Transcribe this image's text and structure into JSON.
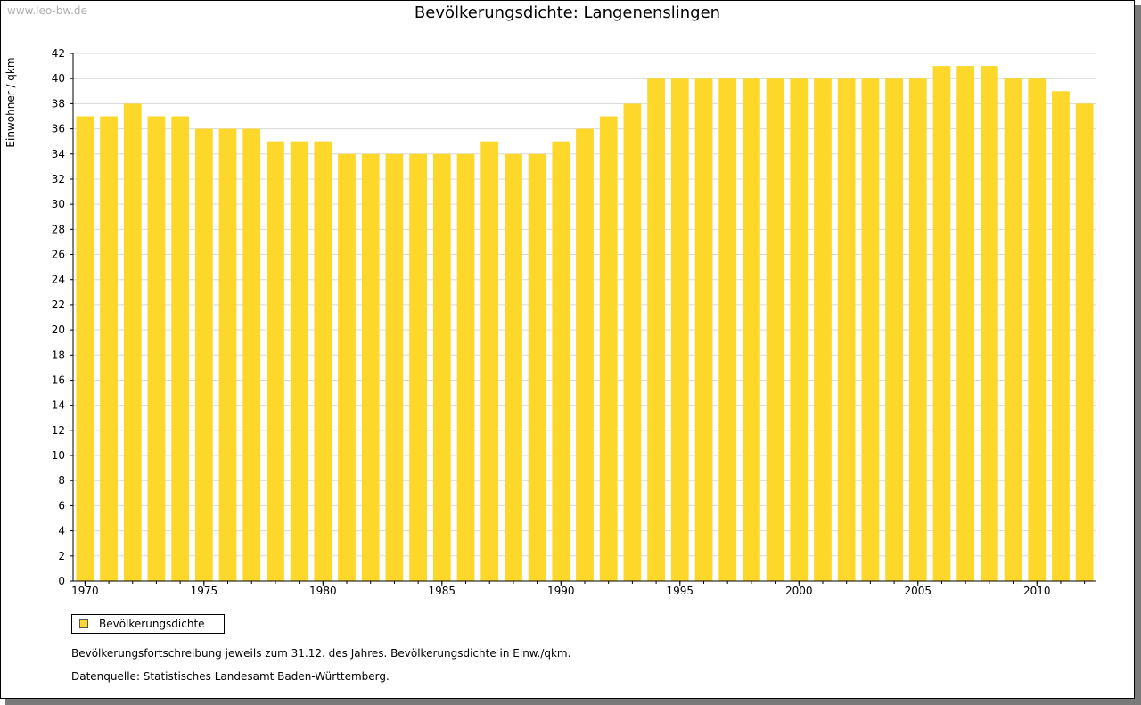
{
  "watermark": "www.leo-bw.de",
  "colors": {
    "bar": "#fdd72a",
    "grid": "#d8d8d8",
    "axis": "#000000"
  },
  "legend": {
    "label": "Bevölkerungsdichte"
  },
  "notes": [
    "Bevölkerungsfortschreibung jeweils zum 31.12. des Jahres. Bevölkerungsdichte in Einw./qkm.",
    "Datenquelle: Statistisches Landesamt Baden-Württemberg."
  ],
  "chart_data": {
    "type": "bar",
    "title": "Bevölkerungsdichte: Langenenslingen",
    "xlabel": "",
    "ylabel": "Einwohner / qkm",
    "ylim": [
      0,
      42
    ],
    "ytick_step": 2,
    "grid": true,
    "legend_position": "bottom-left",
    "xtick_labels": [
      "1970",
      "1975",
      "1980",
      "1985",
      "1990",
      "1995",
      "2000",
      "2005",
      "2010"
    ],
    "categories": [
      1970,
      1971,
      1972,
      1973,
      1974,
      1975,
      1976,
      1977,
      1978,
      1979,
      1980,
      1981,
      1982,
      1983,
      1984,
      1985,
      1986,
      1987,
      1988,
      1989,
      1990,
      1991,
      1992,
      1993,
      1994,
      1995,
      1996,
      1997,
      1998,
      1999,
      2000,
      2001,
      2002,
      2003,
      2004,
      2005,
      2006,
      2007,
      2008,
      2009,
      2010,
      2011,
      2012
    ],
    "series": [
      {
        "name": "Bevölkerungsdichte",
        "values": [
          37,
          37,
          38,
          37,
          37,
          36,
          36,
          36,
          35,
          35,
          35,
          34,
          34,
          34,
          34,
          34,
          34,
          35,
          34,
          34,
          35,
          36,
          37,
          38,
          40,
          40,
          40,
          40,
          40,
          40,
          40,
          40,
          40,
          40,
          40,
          40,
          41,
          41,
          41,
          40,
          40,
          39,
          38
        ]
      }
    ]
  }
}
